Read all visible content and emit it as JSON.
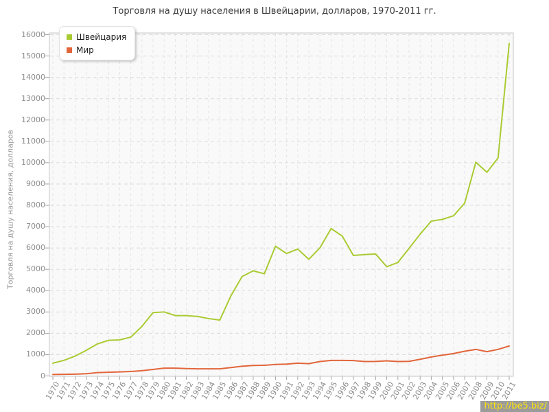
{
  "title": "Торговля на душу населения в Швейцарии, долларов, 1970-2011 гг.",
  "watermark": "http://be5.biz/",
  "colors": {
    "switzerland": "#a9cb31",
    "world": "#e2653a",
    "grid_horizontal": "#dbdbdb",
    "grid_vertical": "#e5e5e5",
    "plot_background": "#f9f9f9",
    "plot_border": "#c6c6c6",
    "tick": "#a0a0a0",
    "label_text": "#8c8c8c",
    "watermark_background": "#9b9b9b",
    "watermark_text": "#ffe40a"
  },
  "legend": {
    "items": [
      {
        "label": "Швейцария",
        "color": "#a9cb31"
      },
      {
        "label": "Мир",
        "color": "#e2653a"
      }
    ]
  },
  "chart_data": {
    "type": "line",
    "title": "Торговля на душу населения в Швейцарии, долларов, 1970-2011 гг.",
    "xlabel": "",
    "ylabel": "Торговля на душу населения, долларов",
    "ylim": [
      0,
      16000
    ],
    "ytick_interval": 1000,
    "grid": true,
    "legend_position": "top-left",
    "x": [
      1970,
      1971,
      1972,
      1973,
      1974,
      1975,
      1976,
      1977,
      1978,
      1979,
      1980,
      1981,
      1982,
      1983,
      1984,
      1985,
      1986,
      1987,
      1988,
      1989,
      1990,
      1991,
      1992,
      1993,
      1994,
      1995,
      1996,
      1997,
      1998,
      1999,
      2000,
      2001,
      2002,
      2003,
      2004,
      2005,
      2006,
      2007,
      2008,
      2009,
      2010,
      2011
    ],
    "series": [
      {
        "name": "Швейцария",
        "color": "#a9cb31",
        "values": [
          600,
          730,
          930,
          1200,
          1500,
          1670,
          1690,
          1820,
          2320,
          2970,
          3000,
          2830,
          2830,
          2790,
          2690,
          2620,
          3760,
          4660,
          4930,
          4790,
          6080,
          5740,
          5950,
          5470,
          6010,
          6910,
          6560,
          5650,
          5690,
          5720,
          5120,
          5320,
          5980,
          6650,
          7260,
          7340,
          7510,
          8100,
          10020,
          9550,
          10220,
          15580
        ]
      },
      {
        "name": "Мир",
        "color": "#e2653a",
        "values": [
          70,
          75,
          85,
          105,
          155,
          175,
          190,
          210,
          245,
          305,
          365,
          365,
          345,
          335,
          335,
          335,
          395,
          455,
          490,
          500,
          540,
          555,
          600,
          575,
          675,
          730,
          730,
          720,
          675,
          680,
          710,
          675,
          685,
          780,
          890,
          975,
          1050,
          1160,
          1245,
          1140,
          1245,
          1405
        ]
      }
    ]
  }
}
